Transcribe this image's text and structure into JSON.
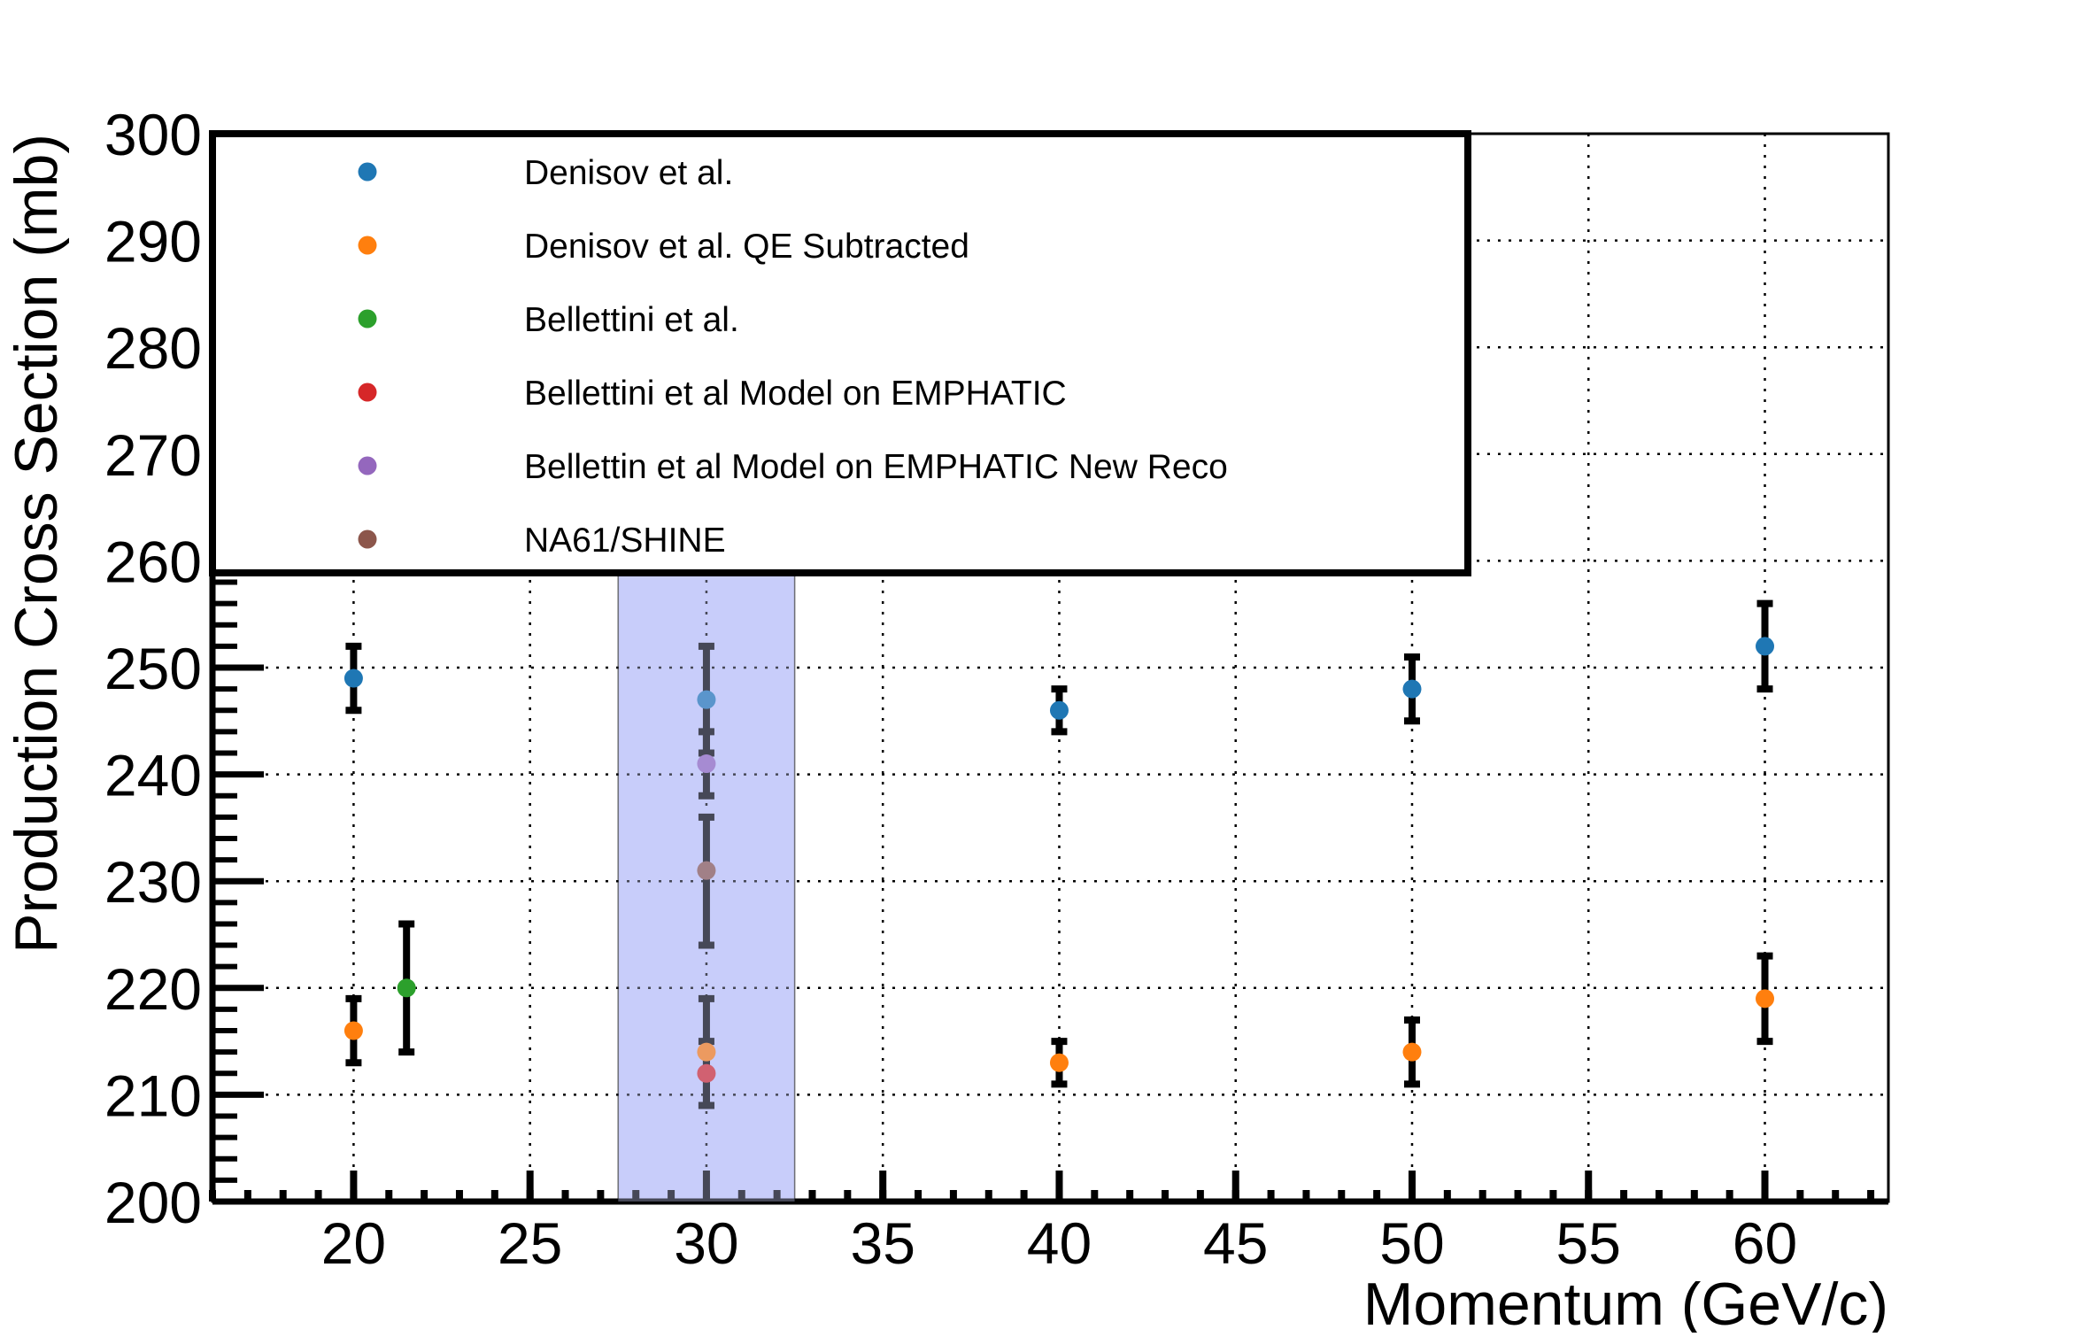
{
  "chart_data": {
    "type": "scatter",
    "title": "",
    "xlabel": "Momentum (GeV/c)",
    "ylabel": "Production Cross Section (mb)",
    "xlim": [
      16,
      63.5
    ],
    "ylim": [
      200,
      300
    ],
    "x_ticks": [
      20,
      25,
      30,
      35,
      40,
      45,
      50,
      55,
      60
    ],
    "x_tick_labels": [
      "20",
      "25",
      "30",
      "35",
      "40",
      "45",
      "50",
      "55",
      "60"
    ],
    "y_ticks": [
      200,
      210,
      220,
      230,
      240,
      250,
      260,
      270,
      280,
      290,
      300
    ],
    "y_tick_labels": [
      "200",
      "210",
      "220",
      "230",
      "240",
      "250",
      "260",
      "270",
      "280",
      "290",
      "300"
    ],
    "grid": true,
    "legend_position": "top-left",
    "highlight_band": {
      "x_min": 27.5,
      "x_max": 32.5,
      "color": "#c8cdfa"
    },
    "series": [
      {
        "name": "Denisov et al.",
        "color": "#1f77b4",
        "points": [
          {
            "x": 20,
            "y": 249,
            "err_lo": 3,
            "err_hi": 3
          },
          {
            "x": 30,
            "y": 247,
            "err_lo": 5,
            "err_hi": 5
          },
          {
            "x": 40,
            "y": 246,
            "err_lo": 2,
            "err_hi": 2
          },
          {
            "x": 50,
            "y": 248,
            "err_lo": 3,
            "err_hi": 3
          },
          {
            "x": 60,
            "y": 252,
            "err_lo": 4,
            "err_hi": 4
          }
        ]
      },
      {
        "name": "Denisov et al. QE Subtracted",
        "color": "#ff7f0e",
        "points": [
          {
            "x": 20,
            "y": 216,
            "err_lo": 3,
            "err_hi": 3
          },
          {
            "x": 30,
            "y": 214,
            "err_lo": 5,
            "err_hi": 5
          },
          {
            "x": 40,
            "y": 213,
            "err_lo": 2,
            "err_hi": 2
          },
          {
            "x": 50,
            "y": 214,
            "err_lo": 3,
            "err_hi": 3
          },
          {
            "x": 60,
            "y": 219,
            "err_lo": 4,
            "err_hi": 4
          }
        ]
      },
      {
        "name": "Bellettini et al.",
        "color": "#2ca02c",
        "points": [
          {
            "x": 21.5,
            "y": 220,
            "err_lo": 6,
            "err_hi": 6
          }
        ]
      },
      {
        "name": "Bellettini et al Model on EMPHATIC",
        "color": "#d62728",
        "points": [
          {
            "x": 30,
            "y": 212,
            "err_lo": 3,
            "err_hi": 3
          }
        ]
      },
      {
        "name": "Bellettin et al Model on EMPHATIC New Reco",
        "color": "#9467bd",
        "points": [
          {
            "x": 30,
            "y": 241,
            "err_lo": 3,
            "err_hi": 3
          }
        ]
      },
      {
        "name": "NA61/SHINE",
        "color": "#8c564b",
        "points": [
          {
            "x": 30,
            "y": 231,
            "err_lo": 7,
            "err_hi": 5
          }
        ]
      }
    ]
  }
}
